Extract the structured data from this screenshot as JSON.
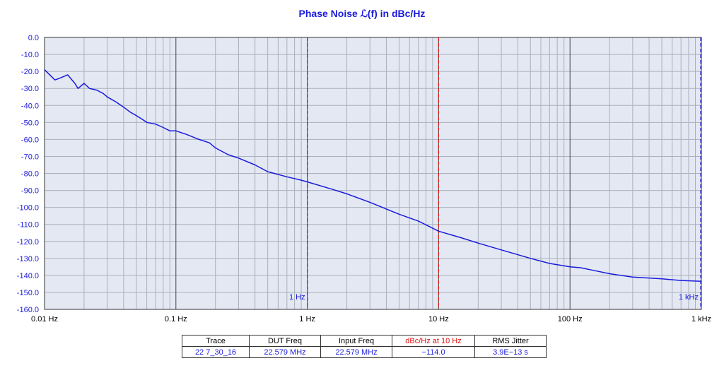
{
  "chart_data": {
    "type": "line",
    "title": "Phase Noise ℒ(f) in dBc/Hz",
    "x_scale": "log",
    "xlim": [
      0.01,
      1000
    ],
    "ylim": [
      -160,
      0
    ],
    "grid": true,
    "y_ticks": [
      "0.0",
      "-10.0",
      "-20.0",
      "-30.0",
      "-40.0",
      "-50.0",
      "-60.0",
      "-70.0",
      "-80.0",
      "-90.0",
      "-100.0",
      "-110.0",
      "-120.0",
      "-130.0",
      "-140.0",
      "-150.0",
      "-160.0"
    ],
    "x_ticks": [
      {
        "value": 0.01,
        "label": "0.01 Hz"
      },
      {
        "value": 0.1,
        "label": "0.1 Hz"
      },
      {
        "value": 1,
        "label": "1 Hz"
      },
      {
        "value": 10,
        "label": "10 Hz"
      },
      {
        "value": 100,
        "label": "100 Hz"
      },
      {
        "value": 1000,
        "label": "1 kHz"
      }
    ],
    "markers": [
      {
        "x": 1,
        "label": "1 Hz",
        "color": "#2a2ae0",
        "style": "dashed"
      },
      {
        "x": 10,
        "label": "",
        "color": "#e01010",
        "style": "dashed"
      },
      {
        "x": 1000,
        "label": "1 kHz",
        "color": "#2a2ae0",
        "style": "dashed"
      }
    ],
    "series": [
      {
        "color": "#1a1adc",
        "x": [
          0.01,
          0.012,
          0.013,
          0.015,
          0.017,
          0.018,
          0.02,
          0.022,
          0.025,
          0.028,
          0.03,
          0.035,
          0.04,
          0.045,
          0.05,
          0.055,
          0.06,
          0.07,
          0.08,
          0.09,
          0.1,
          0.12,
          0.15,
          0.18,
          0.2,
          0.25,
          0.3,
          0.4,
          0.5,
          0.7,
          0.9,
          1,
          1.5,
          2,
          3,
          5,
          7,
          10,
          15,
          20,
          30,
          50,
          70,
          100,
          120,
          150,
          200,
          300,
          500,
          700,
          1000
        ],
        "y": [
          -19,
          -25,
          -24,
          -22,
          -27,
          -30,
          -27,
          -30,
          -31,
          -33,
          -35,
          -38,
          -41,
          -44,
          -46,
          -48,
          -50,
          -51,
          -53,
          -55,
          -55,
          -57,
          -60,
          -62,
          -65,
          -69,
          -71,
          -75,
          -79,
          -82,
          -84,
          -85,
          -89,
          -92,
          -97,
          -104,
          -108,
          -114,
          -118,
          -121,
          -125,
          -130,
          -133,
          -135,
          -135.5,
          -137,
          -139,
          -141,
          -142,
          -143,
          -143.5
        ]
      }
    ]
  },
  "summary_table": {
    "headers": [
      "Trace",
      "DUT Freq",
      "Input Freq",
      "dBc/Hz at 10 Hz",
      "RMS Jitter"
    ],
    "row": [
      "22 7_30_16",
      "22.579 MHz",
      "22.579 MHz",
      "−114.0",
      "3.9E−13 s"
    ]
  },
  "colors": {
    "plot_background": "#e3e8f3",
    "major_grid": "#444444",
    "minor_grid": "#aab0bc",
    "trace": "#1a1adc",
    "accent_red": "#e01010"
  }
}
